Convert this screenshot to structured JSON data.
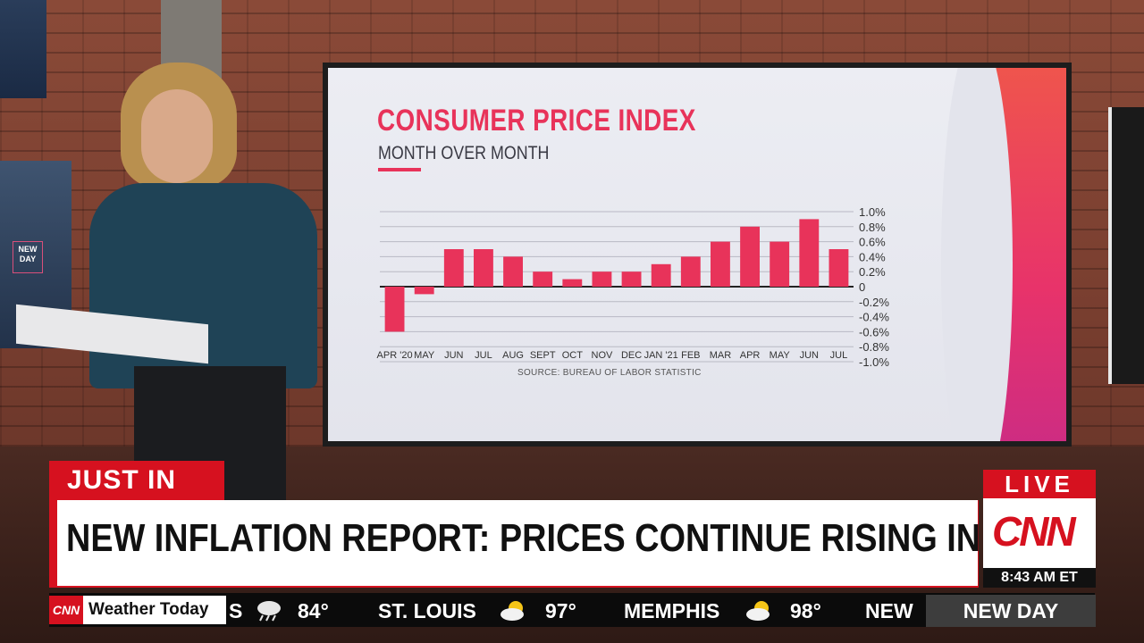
{
  "chart_data": {
    "type": "bar",
    "title": "CONSUMER PRICE INDEX",
    "subtitle": "MONTH OVER MONTH",
    "source": "SOURCE: BUREAU OF LABOR STATISTIC",
    "categories": [
      "APR '20",
      "MAY",
      "JUN",
      "JUL",
      "AUG",
      "SEPT",
      "OCT",
      "NOV",
      "DEC",
      "JAN '21",
      "FEB",
      "MAR",
      "APR",
      "MAY",
      "JUN",
      "JUL"
    ],
    "values": [
      -0.6,
      -0.1,
      0.5,
      0.5,
      0.4,
      0.2,
      0.1,
      0.2,
      0.2,
      0.3,
      0.4,
      0.6,
      0.8,
      0.6,
      0.9,
      0.5
    ],
    "ylim": [
      -1.0,
      1.0
    ],
    "yticks": [
      "1.0%",
      "0.8%",
      "0.6%",
      "0.4%",
      "0.2%",
      "0",
      "-0.2%",
      "-0.4%",
      "-0.6%",
      "-0.8%",
      "-1.0%"
    ],
    "ytick_values": [
      1.0,
      0.8,
      0.6,
      0.4,
      0.2,
      0,
      -0.2,
      -0.4,
      -0.6,
      -0.8,
      -1.0
    ],
    "grid": true,
    "bar_color": "#e8335a"
  },
  "lower_third": {
    "tag": "JUST IN",
    "headline": "NEW INFLATION REPORT: PRICES CONTINUE RISING IN U.S.",
    "live": "LIVE",
    "network": "CNN",
    "time": "8:43 AM ET"
  },
  "ticker": {
    "network": "CNN",
    "label": "Weather Today",
    "items": [
      {
        "city": "S",
        "icon": "rain-cloud-icon",
        "temp": "84°"
      },
      {
        "city": "ST. LOUIS",
        "icon": "sun-cloud-icon",
        "temp": "97°"
      },
      {
        "city": "MEMPHIS",
        "icon": "sun-cloud-icon",
        "temp": "98°"
      },
      {
        "city": "NEW",
        "icon": "",
        "temp": ""
      }
    ],
    "show": "NEW DAY"
  },
  "studio": {
    "left_logo": "NEW DAY"
  },
  "colors": {
    "cnn_red": "#d6111f",
    "chart_pink": "#e8335a"
  }
}
